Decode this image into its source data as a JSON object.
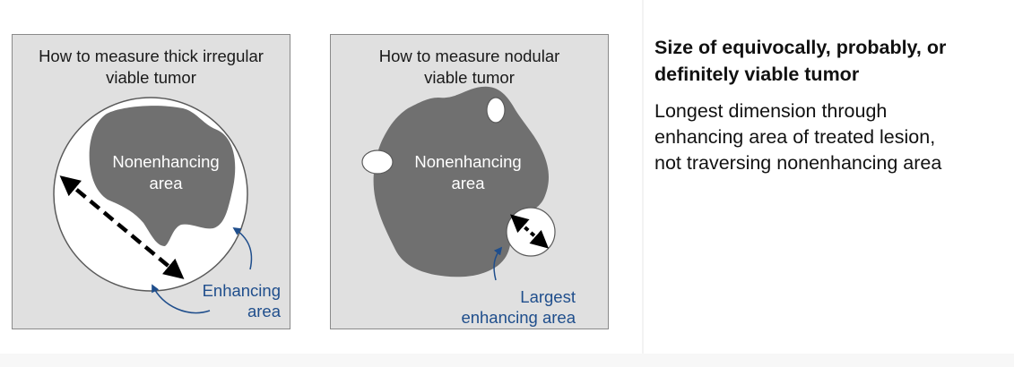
{
  "panels": [
    {
      "title": [
        "How to measure thick irregular",
        "viable tumor"
      ],
      "center_label": [
        "Nonenhancing",
        "area"
      ],
      "annotation": [
        "Enhancing",
        "area"
      ]
    },
    {
      "title": [
        "How to measure nodular",
        "viable tumor"
      ],
      "center_label": [
        "Nonenhancing",
        "area"
      ],
      "annotation": [
        "Largest",
        "enhancing area"
      ]
    }
  ],
  "description": {
    "heading": [
      "Size of equivocally, probably, or",
      "definitely viable tumor"
    ],
    "body": [
      "Longest dimension through",
      "enhancing area of treated lesion,",
      "not traversing nonenhancing area"
    ]
  },
  "colors": {
    "panel_background": "#e0e0e0",
    "tumor_fill": "#707070",
    "enhancing_fill": "#ffffff",
    "annotation_blue": "#1f4e8c"
  }
}
